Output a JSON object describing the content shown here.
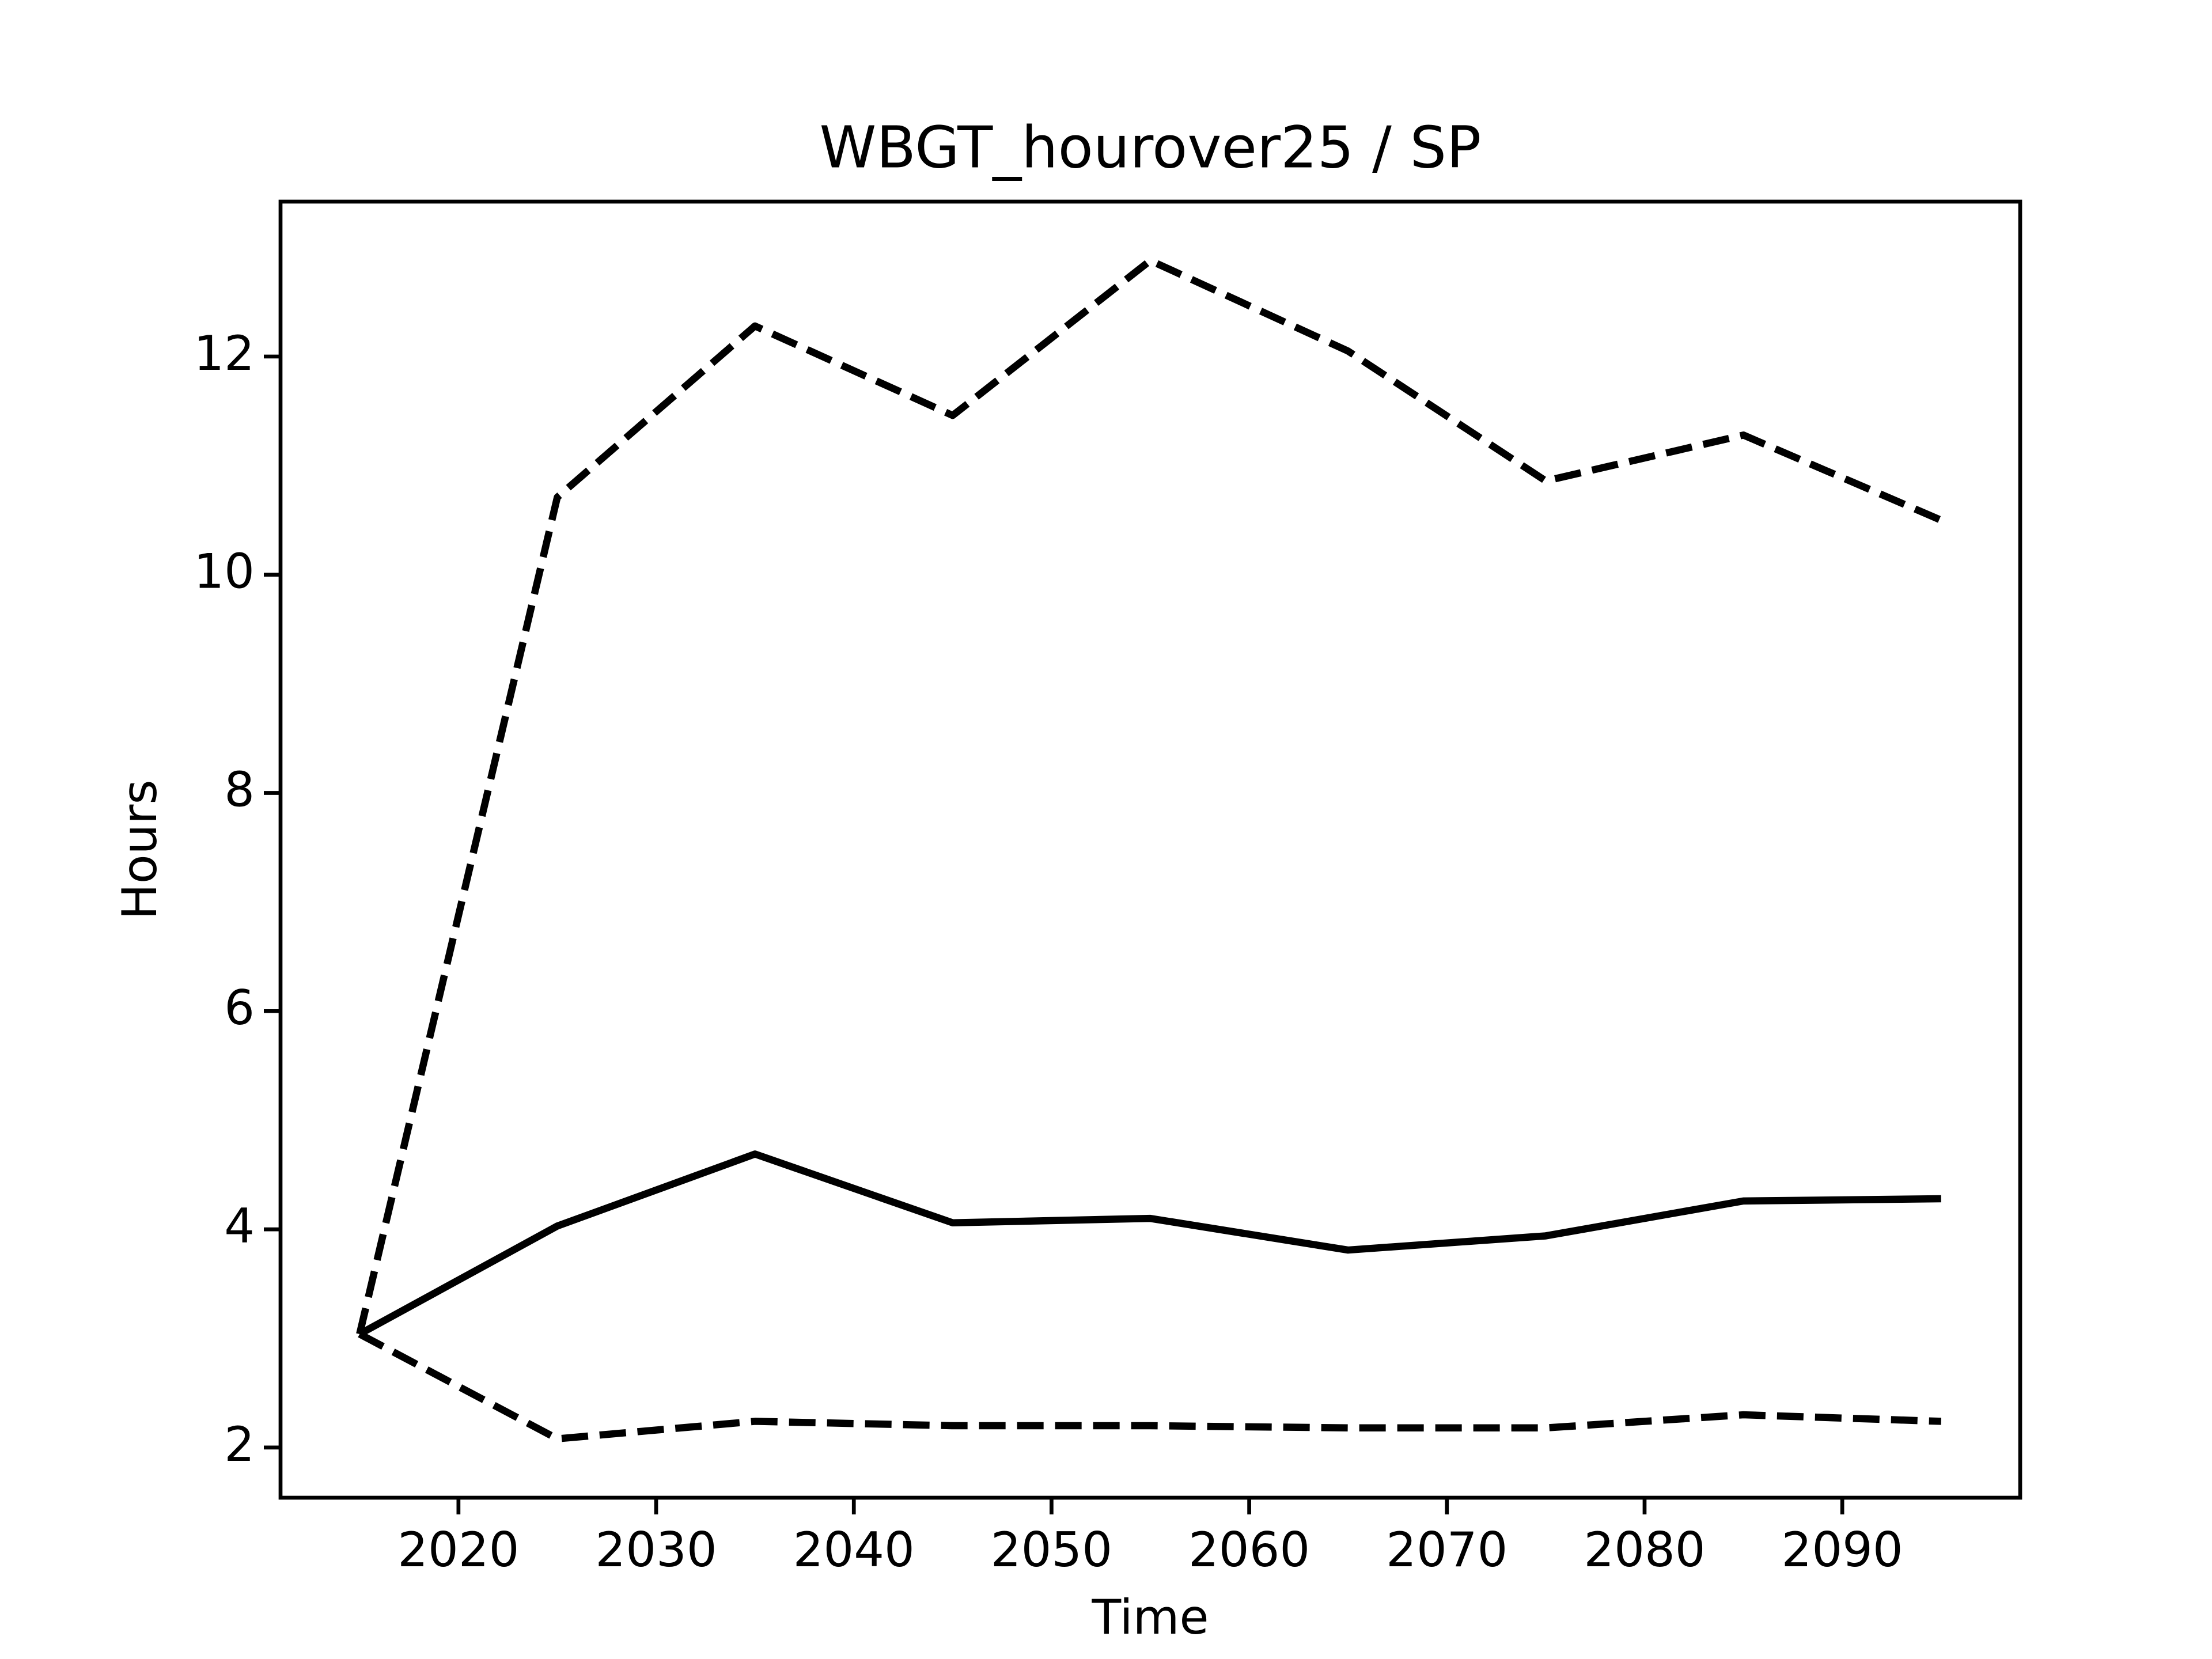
{
  "chart_data": {
    "type": "line",
    "title": "WBGT_hourover25 / SP",
    "x_label": "Time",
    "y_label": "Hours",
    "x": [
      2015,
      2025,
      2035,
      2045,
      2055,
      2065,
      2075,
      2085,
      2095
    ],
    "series": [
      {
        "color": "#000000",
        "dash": "solid",
        "values": [
          3.04,
          4.03,
          4.69,
          4.06,
          4.1,
          3.81,
          3.94,
          4.26,
          4.28
        ]
      },
      {
        "color": "#000000",
        "dash": "dashed",
        "values": [
          3.04,
          10.71,
          12.28,
          11.46,
          12.88,
          12.05,
          10.86,
          11.28,
          10.5
        ]
      },
      {
        "color": "#000000",
        "dash": "dashed",
        "values": [
          3.04,
          2.08,
          2.24,
          2.2,
          2.2,
          2.18,
          2.18,
          2.3,
          2.24
        ]
      }
    ],
    "xlim": [
      2011,
      2099
    ],
    "ylim": [
      1.54,
      13.42
    ],
    "xticks": [
      2020,
      2030,
      2040,
      2050,
      2060,
      2070,
      2080,
      2090
    ],
    "yticks": [
      2,
      4,
      6,
      8,
      10,
      12
    ],
    "grid": false
  }
}
